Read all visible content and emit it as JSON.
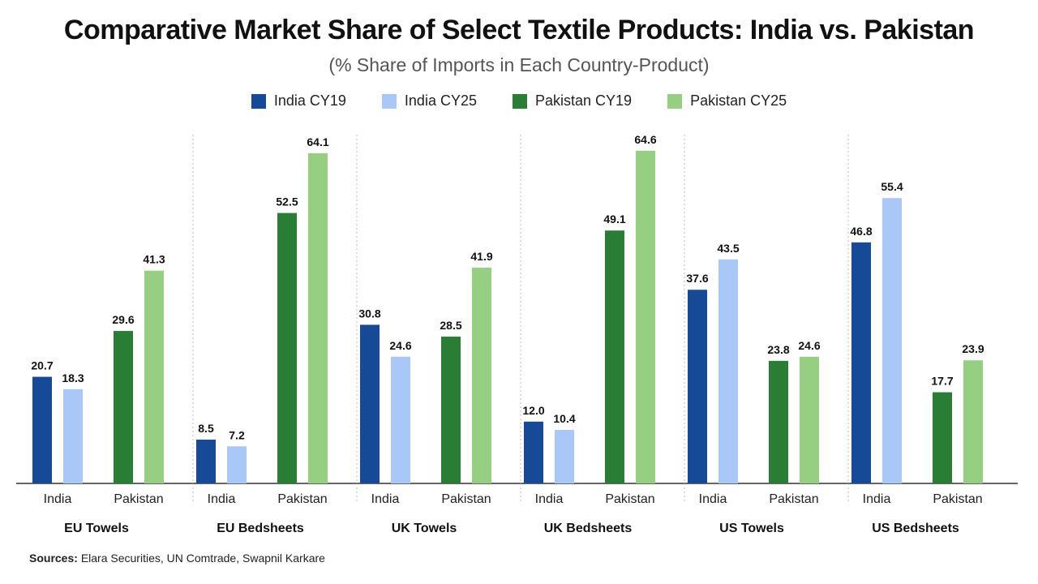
{
  "title": "Comparative Market Share of Select Textile Products: India vs. Pakistan",
  "subtitle": "(% Share of Imports in Each Country-Product)",
  "source": {
    "label": "Sources:",
    "text": "Elara Securities, UN Comtrade, Swapnil Karkare"
  },
  "chart_data": {
    "type": "bar",
    "title": "Comparative Market Share of Select Textile Products: India vs. Pakistan",
    "subtitle": "(% Share of Imports in Each Country-Product)",
    "legend_position": "top-center",
    "grid": false,
    "ylim": [
      0,
      70
    ],
    "colors": {
      "India CY19": "#174a96",
      "India CY25": "#a9c8f7",
      "Pakistan CY19": "#2a7d34",
      "Pakistan CY25": "#97cf82"
    },
    "legend": [
      "India CY19",
      "India CY25",
      "Pakistan CY19",
      "Pakistan CY25"
    ],
    "groups": [
      {
        "name": "EU Towels",
        "subgroups": [
          {
            "label": "India",
            "values": [
              20.7,
              18.3
            ],
            "labels": [
              "20.7",
              "18.3"
            ]
          },
          {
            "label": "Pakistan",
            "values": [
              29.6,
              41.3
            ],
            "labels": [
              "29.6",
              "41.3"
            ]
          }
        ]
      },
      {
        "name": "EU Bedsheets",
        "subgroups": [
          {
            "label": "India",
            "values": [
              8.5,
              7.2
            ],
            "labels": [
              "8.5",
              "7.2"
            ]
          },
          {
            "label": "Pakistan",
            "values": [
              52.5,
              64.1
            ],
            "labels": [
              "52.5",
              "64.1"
            ]
          }
        ]
      },
      {
        "name": "UK Towels",
        "subgroups": [
          {
            "label": "India",
            "values": [
              30.8,
              24.6
            ],
            "labels": [
              "30.8",
              "24.6"
            ]
          },
          {
            "label": "Pakistan",
            "values": [
              28.5,
              41.9
            ],
            "labels": [
              "28.5",
              "41.9"
            ]
          }
        ]
      },
      {
        "name": "UK Bedsheets",
        "subgroups": [
          {
            "label": "India",
            "values": [
              12.0,
              10.4
            ],
            "labels": [
              "12.0",
              "10.4"
            ]
          },
          {
            "label": "Pakistan",
            "values": [
              49.1,
              64.6
            ],
            "labels": [
              "49.1",
              "64.6"
            ]
          }
        ]
      },
      {
        "name": "US Towels",
        "subgroups": [
          {
            "label": "India",
            "values": [
              37.6,
              43.5
            ],
            "labels": [
              "37.6",
              "43.5"
            ]
          },
          {
            "label": "Pakistan",
            "values": [
              23.8,
              24.6
            ],
            "labels": [
              "23.8",
              "24.6"
            ]
          }
        ]
      },
      {
        "name": "US Bedsheets",
        "subgroups": [
          {
            "label": "India",
            "values": [
              46.8,
              55.4
            ],
            "labels": [
              "46.8",
              "55.4"
            ]
          },
          {
            "label": "Pakistan",
            "values": [
              17.7,
              23.9
            ],
            "labels": [
              "17.7",
              "23.9"
            ]
          }
        ]
      }
    ]
  }
}
